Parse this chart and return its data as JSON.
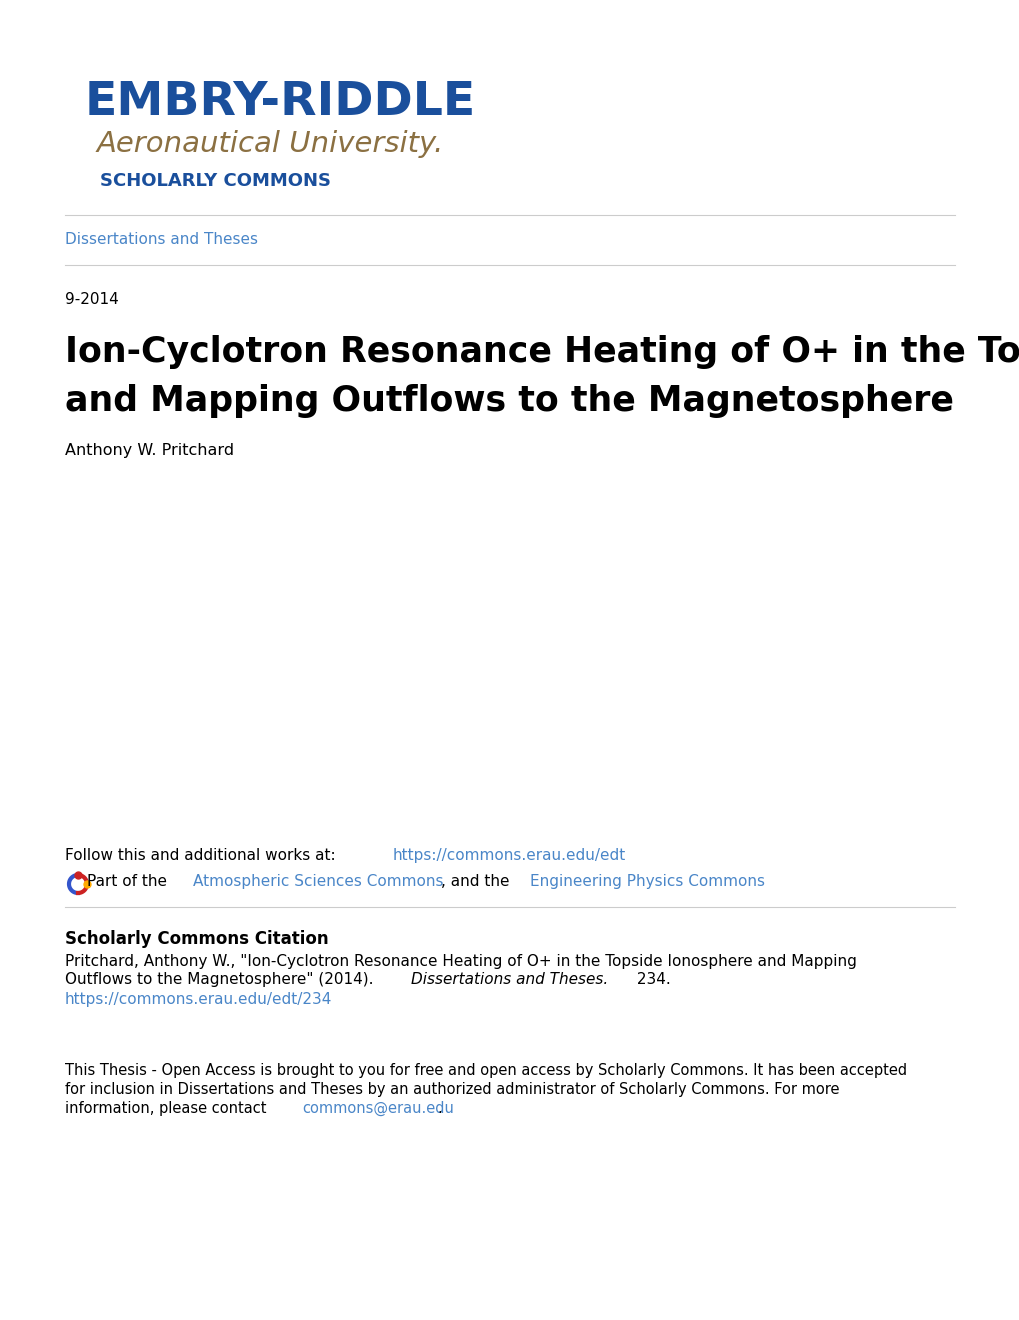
{
  "background_color": "#ffffff",
  "embry_riddle_color": "#1a4f9c",
  "aeronautical_color": "#8B7042",
  "scholarly_commons_color": "#1a4f9c",
  "link_color": "#4a86c8",
  "separator_color": "#cccccc",
  "text_color": "#000000",
  "dissertations_link": "Dissertations and Theses",
  "date": "9-2014",
  "main_title_line1": "Ion-Cyclotron Resonance Heating of O+ in the Topside Ionosphere",
  "main_title_line2": "and Mapping Outflows to the Magnetosphere",
  "author": "Anthony W. Pritchard",
  "follow_text": "Follow this and additional works at: ",
  "follow_link": "https://commons.erau.edu/edt",
  "part_before": "Part of the ",
  "part_link1": "Atmospheric Sciences Commons",
  "part_mid": ", and the ",
  "part_link2": "Engineering Physics Commons",
  "citation_heading": "Scholarly Commons Citation",
  "citation_line1": "Pritchard, Anthony W., \"Ion-Cyclotron Resonance Heating of O+ in the Topside Ionosphere and Mapping",
  "citation_line2_plain": "Outflows to the Magnetosphere\" (2014). ",
  "citation_line2_italic": "Dissertations and Theses.",
  "citation_line2_end": " 234.",
  "citation_link": "https://commons.erau.edu/edt/234",
  "open_line1": "This Thesis - Open Access is brought to you for free and open access by Scholarly Commons. It has been accepted",
  "open_line2": "for inclusion in Dissertations and Theses by an authorized administrator of Scholarly Commons. For more",
  "open_line3_before": "information, please contact ",
  "open_link": "commons@erau.edu",
  "open_end": ".",
  "embry_riddle_text": "EMBRY-RIDDLE",
  "aeronautical_text": "Aeronautical University.",
  "scholarly_text": "SCHOLARLY COMMONS"
}
